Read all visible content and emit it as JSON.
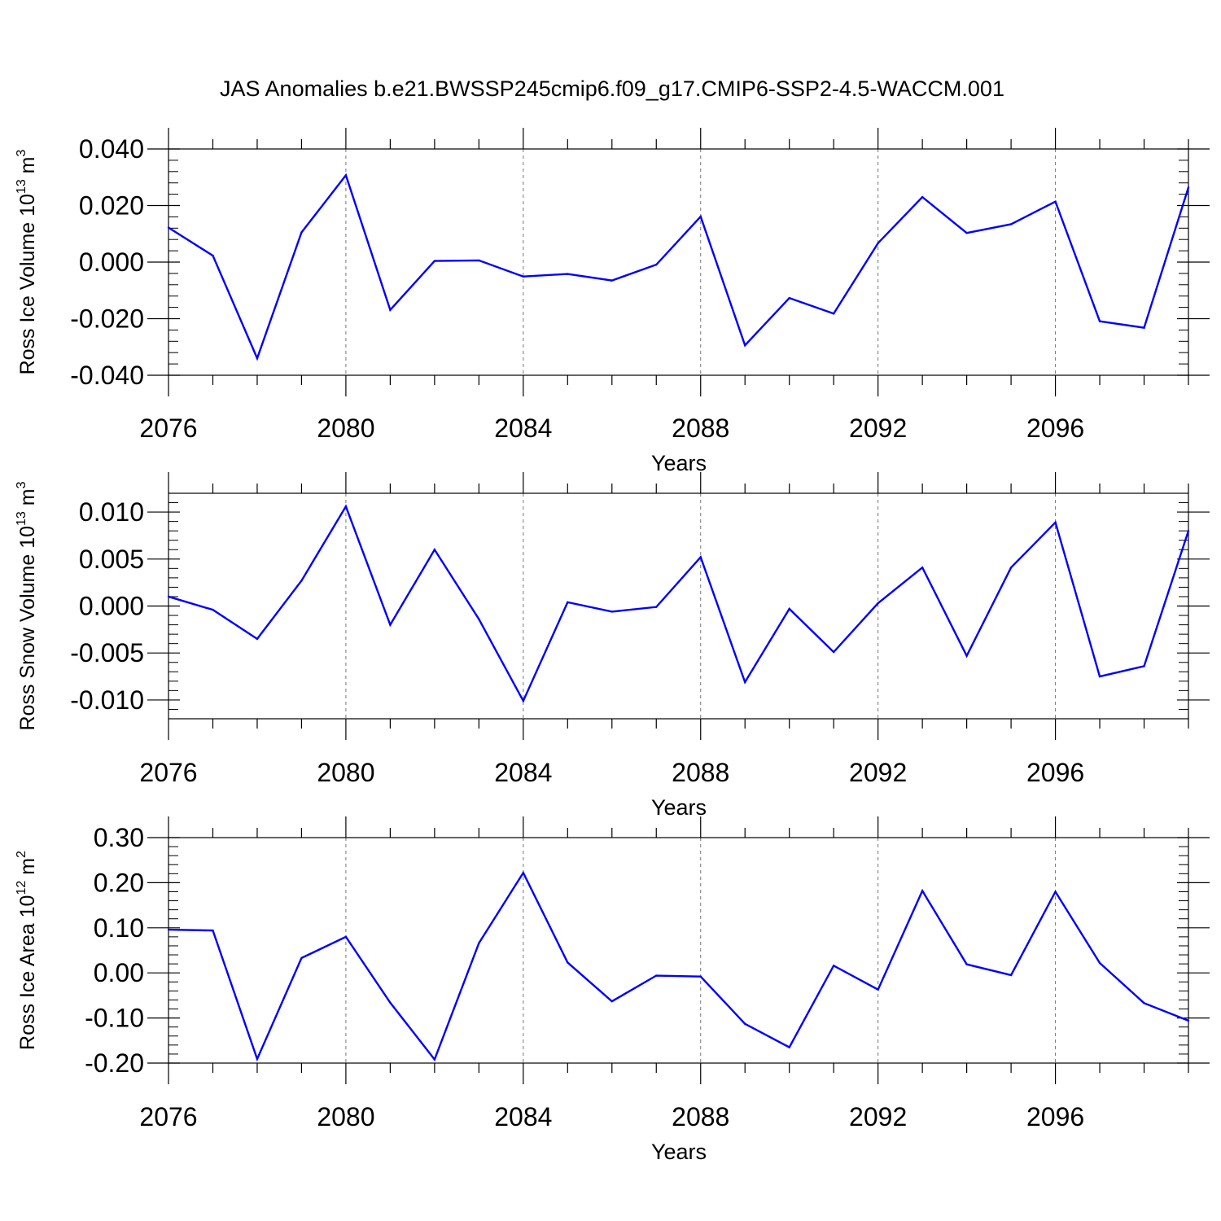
{
  "title": "JAS Anomalies b.e21.BWSSP245cmip6.f09_g17.CMIP6-SSP2-4.5-WACCM.001",
  "colors": {
    "line": "#0000ff",
    "axis": "#000000",
    "grid": "#777777"
  },
  "chart_data": [
    {
      "type": "line",
      "ylabel": {
        "text": "Ross Ice Volume 10",
        "exp": "13",
        "unit": " m",
        "unit_exp": "3"
      },
      "xlabel": "Years",
      "xlim": [
        2076,
        2099
      ],
      "xticks": [
        2076,
        2080,
        2084,
        2088,
        2092,
        2096
      ],
      "xtick_labels": [
        "2076",
        "2080",
        "2084",
        "2088",
        "2092",
        "2096"
      ],
      "ylim": [
        -0.04,
        0.04
      ],
      "yticks": [
        -0.04,
        -0.02,
        0.0,
        0.02,
        0.04
      ],
      "ytick_labels": [
        "-0.040",
        "-0.020",
        "0.000",
        "0.020",
        "0.040"
      ],
      "grid_x": [
        2080,
        2084,
        2088,
        2092,
        2096
      ],
      "series": [
        {
          "name": "Ross Ice Volume",
          "x": [
            2076,
            2077,
            2078,
            2079,
            2080,
            2081,
            2082,
            2083,
            2084,
            2085,
            2086,
            2087,
            2088,
            2089,
            2090,
            2091,
            2092,
            2093,
            2094,
            2095,
            2096,
            2097,
            2098,
            2099
          ],
          "values": [
            0.0122,
            0.0023,
            -0.034,
            0.0105,
            0.0307,
            -0.0169,
            0.0004,
            0.0006,
            -0.0051,
            -0.0042,
            -0.0065,
            -0.0009,
            0.0161,
            -0.0294,
            -0.0127,
            -0.0182,
            0.0067,
            0.023,
            0.0103,
            0.0134,
            0.0214,
            -0.0209,
            -0.0232,
            0.0264
          ]
        }
      ]
    },
    {
      "type": "line",
      "ylabel": {
        "text": "Ross Snow Volume 10",
        "exp": "13",
        "unit": " m",
        "unit_exp": "3"
      },
      "xlabel": "Years",
      "xlim": [
        2076,
        2099
      ],
      "xticks": [
        2076,
        2080,
        2084,
        2088,
        2092,
        2096
      ],
      "xtick_labels": [
        "2076",
        "2080",
        "2084",
        "2088",
        "2092",
        "2096"
      ],
      "ylim": [
        -0.012,
        0.012
      ],
      "yticks": [
        -0.01,
        -0.005,
        0.0,
        0.005,
        0.01
      ],
      "ytick_labels": [
        "-0.010",
        "-0.005",
        "0.000",
        "0.005",
        "0.010"
      ],
      "grid_x": [
        2080,
        2084,
        2088,
        2092,
        2096
      ],
      "series": [
        {
          "name": "Ross Snow Volume",
          "x": [
            2076,
            2077,
            2078,
            2079,
            2080,
            2081,
            2082,
            2083,
            2084,
            2085,
            2086,
            2087,
            2088,
            2089,
            2090,
            2091,
            2092,
            2093,
            2094,
            2095,
            2096,
            2097,
            2098,
            2099
          ],
          "values": [
            0.001,
            -0.0004,
            -0.0035,
            0.0027,
            0.0106,
            -0.002,
            0.006,
            -0.0014,
            -0.0101,
            0.0004,
            -0.0006,
            -0.0001,
            0.0052,
            -0.0081,
            -0.0003,
            -0.0049,
            0.0003,
            0.0041,
            -0.0053,
            0.0041,
            0.0089,
            -0.0075,
            -0.0064,
            0.008
          ]
        }
      ]
    },
    {
      "type": "line",
      "ylabel": {
        "text": "Ross Ice Area 10",
        "exp": "12",
        "unit": " m",
        "unit_exp": "2"
      },
      "xlabel": "Years",
      "xlim": [
        2076,
        2099
      ],
      "xticks": [
        2076,
        2080,
        2084,
        2088,
        2092,
        2096
      ],
      "xtick_labels": [
        "2076",
        "2080",
        "2084",
        "2088",
        "2092",
        "2096"
      ],
      "ylim": [
        -0.2,
        0.3
      ],
      "yticks": [
        -0.2,
        -0.1,
        0.0,
        0.1,
        0.2,
        0.3
      ],
      "ytick_labels": [
        "-0.20",
        "-0.10",
        "0.00",
        "0.10",
        "0.20",
        "0.30"
      ],
      "grid_x": [
        2080,
        2084,
        2088,
        2092,
        2096
      ],
      "series": [
        {
          "name": "Ross Ice Area",
          "x": [
            2076,
            2077,
            2078,
            2079,
            2080,
            2081,
            2082,
            2083,
            2084,
            2085,
            2086,
            2087,
            2088,
            2089,
            2090,
            2091,
            2092,
            2093,
            2094,
            2095,
            2096,
            2097,
            2098,
            2099
          ],
          "values": [
            0.096,
            0.094,
            -0.191,
            0.033,
            0.08,
            -0.066,
            -0.192,
            0.066,
            0.222,
            0.023,
            -0.063,
            -0.006,
            -0.008,
            -0.113,
            -0.165,
            0.016,
            -0.037,
            0.182,
            0.019,
            -0.005,
            0.18,
            0.022,
            -0.067,
            -0.106
          ]
        }
      ]
    }
  ]
}
